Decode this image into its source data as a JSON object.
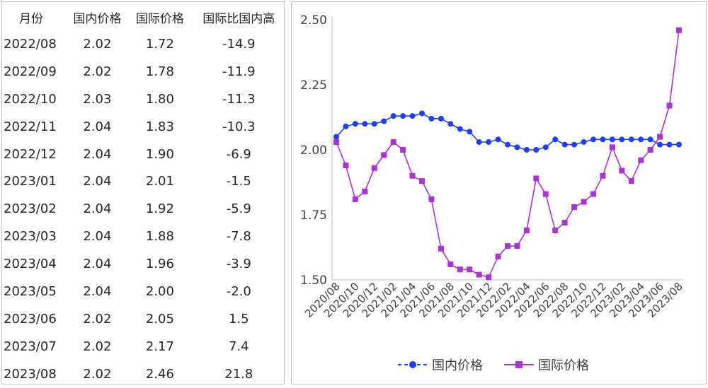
{
  "table": {
    "headers": [
      "月份",
      "国内价格",
      "国际价格",
      "国际比国内高"
    ],
    "rows": [
      [
        "2022/08",
        "2.02",
        "1.72",
        "-14.9"
      ],
      [
        "2022/09",
        "2.02",
        "1.78",
        "-11.9"
      ],
      [
        "2022/10",
        "2.03",
        "1.80",
        "-11.3"
      ],
      [
        "2022/11",
        "2.04",
        "1.83",
        "-10.3"
      ],
      [
        "2022/12",
        "2.04",
        "1.90",
        "-6.9"
      ],
      [
        "2023/01",
        "2.04",
        "2.01",
        "-1.5"
      ],
      [
        "2023/02",
        "2.04",
        "1.92",
        "-5.9"
      ],
      [
        "2023/03",
        "2.04",
        "1.88",
        "-7.8"
      ],
      [
        "2023/04",
        "2.04",
        "1.96",
        "-3.9"
      ],
      [
        "2023/05",
        "2.04",
        "2.00",
        "-2.0"
      ],
      [
        "2023/06",
        "2.02",
        "2.05",
        "1.5"
      ],
      [
        "2023/07",
        "2.02",
        "2.17",
        "7.4"
      ],
      [
        "2023/08",
        "2.02",
        "2.46",
        "21.8"
      ]
    ]
  },
  "chart_data": {
    "type": "line",
    "x": [
      "2020/08",
      "2020/09",
      "2020/10",
      "2020/11",
      "2020/12",
      "2021/01",
      "2021/02",
      "2021/03",
      "2021/04",
      "2021/05",
      "2021/06",
      "2021/07",
      "2021/08",
      "2021/09",
      "2021/10",
      "2021/11",
      "2021/12",
      "2022/01",
      "2022/02",
      "2022/03",
      "2022/04",
      "2022/05",
      "2022/06",
      "2022/07",
      "2022/08",
      "2022/09",
      "2022/10",
      "2022/11",
      "2022/12",
      "2023/01",
      "2023/02",
      "2023/03",
      "2023/04",
      "2023/05",
      "2023/06",
      "2023/07",
      "2023/08"
    ],
    "xtick_labels": [
      "2020/08",
      "2020/10",
      "2020/12",
      "2021/02",
      "2021/04",
      "2021/06",
      "2021/08",
      "2021/10",
      "2021/12",
      "2022/02",
      "2022/04",
      "2022/06",
      "2022/08",
      "2022/10",
      "2022/12",
      "2023/02",
      "2023/04",
      "2023/06",
      "2023/08"
    ],
    "series": [
      {
        "name": "国内价格",
        "color": "#1f3ff5",
        "marker": "circle",
        "dash": true,
        "values": [
          2.05,
          2.09,
          2.1,
          2.1,
          2.1,
          2.11,
          2.13,
          2.13,
          2.13,
          2.14,
          2.12,
          2.12,
          2.1,
          2.08,
          2.07,
          2.03,
          2.03,
          2.04,
          2.02,
          2.01,
          2.0,
          2.0,
          2.01,
          2.04,
          2.02,
          2.02,
          2.03,
          2.04,
          2.04,
          2.04,
          2.04,
          2.04,
          2.04,
          2.04,
          2.02,
          2.02,
          2.02
        ]
      },
      {
        "name": "国际价格",
        "color": "#a933d4",
        "marker": "square",
        "dash": false,
        "values": [
          2.03,
          1.94,
          1.81,
          1.84,
          1.93,
          1.98,
          2.03,
          2.0,
          1.9,
          1.88,
          1.81,
          1.62,
          1.56,
          1.54,
          1.54,
          1.52,
          1.51,
          1.59,
          1.63,
          1.63,
          1.69,
          1.89,
          1.83,
          1.69,
          1.72,
          1.78,
          1.8,
          1.83,
          1.9,
          2.01,
          1.92,
          1.88,
          1.96,
          2.0,
          2.05,
          2.17,
          2.46
        ]
      }
    ],
    "yticks": [
      "1.50",
      "1.75",
      "2.00",
      "2.25",
      "2.50"
    ],
    "ylim": [
      1.5,
      2.5
    ],
    "grid": false,
    "legend": "bottom"
  }
}
